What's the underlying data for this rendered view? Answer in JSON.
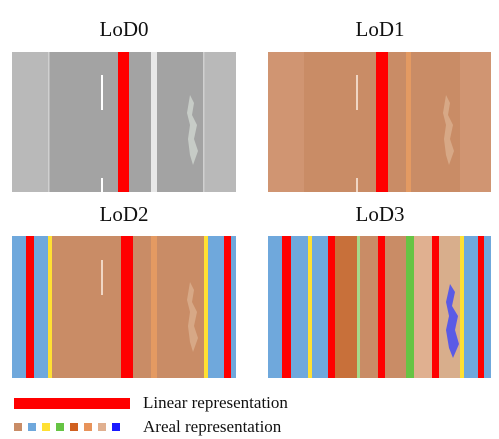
{
  "panels": [
    {
      "title": "LoD0"
    },
    {
      "title": "LoD1"
    },
    {
      "title": "LoD2"
    },
    {
      "title": "LoD3"
    }
  ],
  "legend": [
    {
      "label": "Linear representation"
    },
    {
      "label": "Areal representation"
    }
  ]
}
